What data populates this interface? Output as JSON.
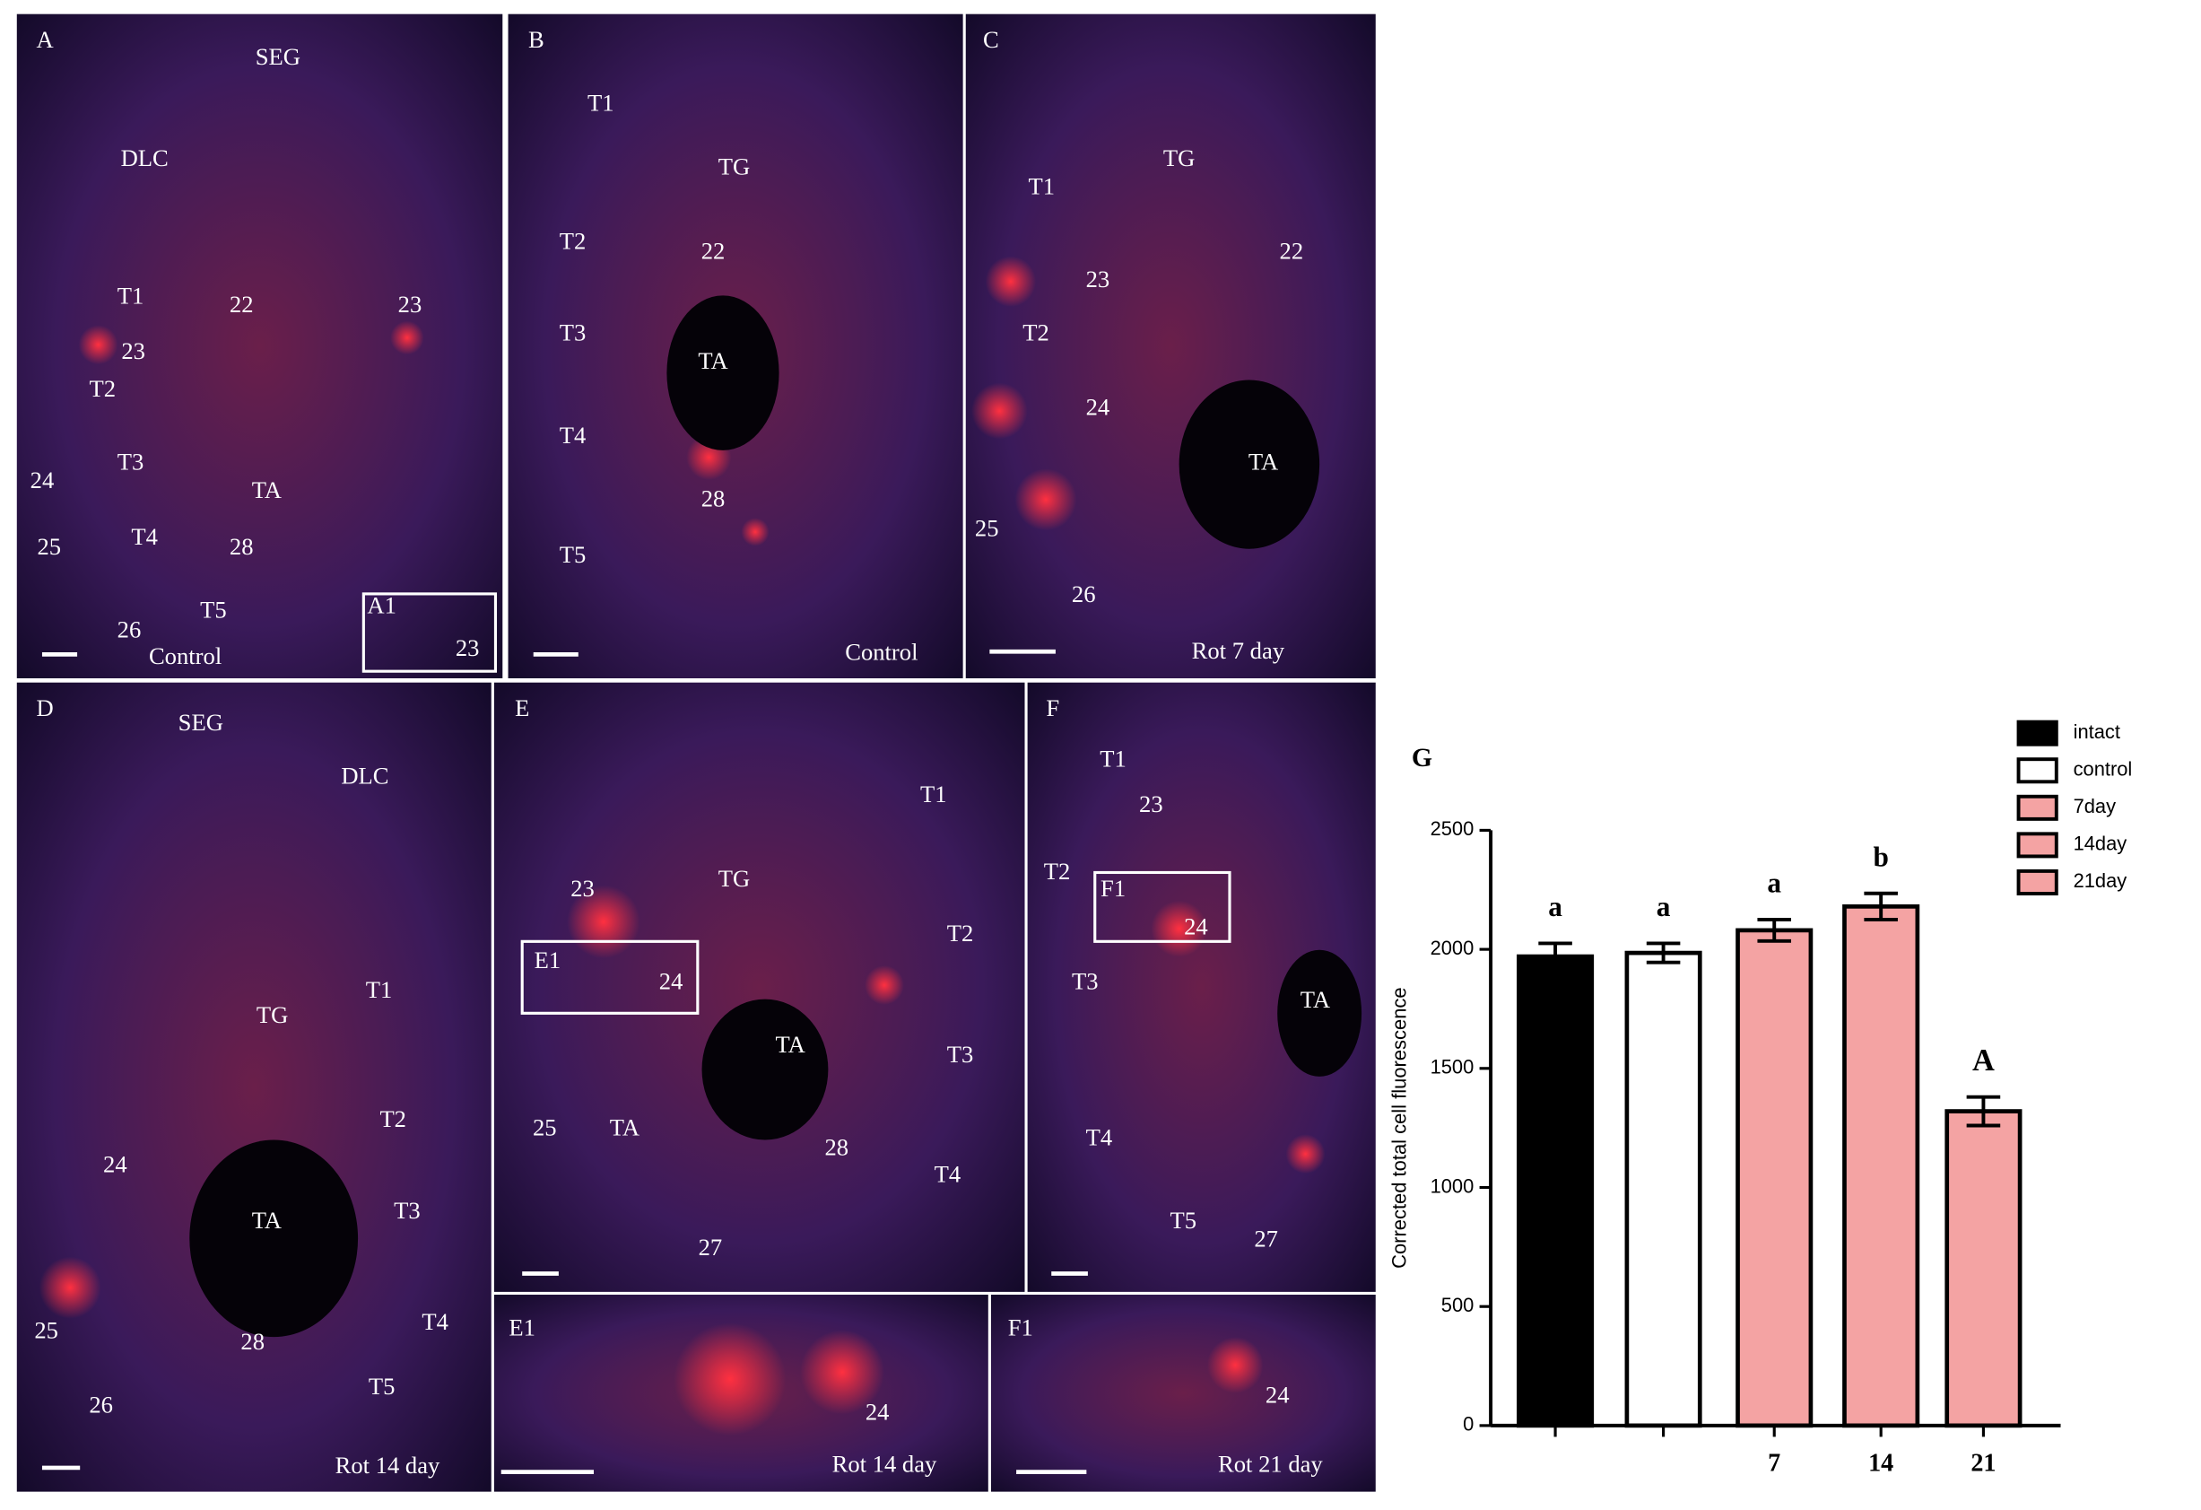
{
  "panels": [
    {
      "letter": "A",
      "labels": [
        "SEG",
        "DLC",
        "T1",
        "22",
        "23",
        "23",
        "T2",
        "T3",
        "24",
        "TA",
        "T4",
        "28",
        "25",
        "T5",
        "26",
        "Control",
        "A1",
        "23"
      ]
    },
    {
      "letter": "B",
      "labels": [
        "T1",
        "TG",
        "T2",
        "22",
        "T3",
        "TA",
        "T4",
        "28",
        "T5",
        "Control"
      ]
    },
    {
      "letter": "C",
      "labels": [
        "TG",
        "T1",
        "22",
        "23",
        "T2",
        "24",
        "TA",
        "25",
        "26",
        "Rot 7 day"
      ]
    },
    {
      "letter": "D",
      "labels": [
        "SEG",
        "DLC",
        "T1",
        "TG",
        "T2",
        "24",
        "TA",
        "T3",
        "25",
        "28",
        "T4",
        "26",
        "T5",
        "Rot 14 day"
      ]
    },
    {
      "letter": "E",
      "labels": [
        "T1",
        "TG",
        "23",
        "T2",
        "E1",
        "24",
        "TA",
        "T3",
        "25",
        "TA",
        "28",
        "T4",
        "27"
      ]
    },
    {
      "letter": "F",
      "labels": [
        "T1",
        "23",
        "T2",
        "F1",
        "24",
        "T3",
        "TA",
        "T4",
        "T5",
        "27"
      ]
    },
    {
      "letter": "E1",
      "labels": [
        "24",
        "Rot 14 day"
      ]
    },
    {
      "letter": "F1",
      "labels": [
        "24",
        "Rot 21 day"
      ]
    }
  ],
  "chart_data": {
    "type": "bar",
    "panel_letter": "G",
    "y_label": "Corrected total cell fluorescence",
    "categories": [
      null,
      null,
      "7",
      "14",
      "21"
    ],
    "values": [
      1970,
      1985,
      2080,
      2180,
      1320
    ],
    "errors": [
      55,
      40,
      45,
      55,
      60
    ],
    "annotations": [
      "a",
      "a",
      "a",
      "b",
      "A"
    ],
    "legend": [
      {
        "name": "intact",
        "color": "#000000"
      },
      {
        "name": "control",
        "color": "#ffffff"
      },
      {
        "name": "7day",
        "color": "#f4a3a3"
      },
      {
        "name": "14day",
        "color": "#f4a3a3"
      },
      {
        "name": "21day",
        "color": "#f4a3a3"
      }
    ],
    "edge_color": "#000000",
    "ylim": [
      0,
      2500
    ],
    "yticks": [
      0,
      500,
      1000,
      1500,
      2000,
      2500
    ]
  }
}
